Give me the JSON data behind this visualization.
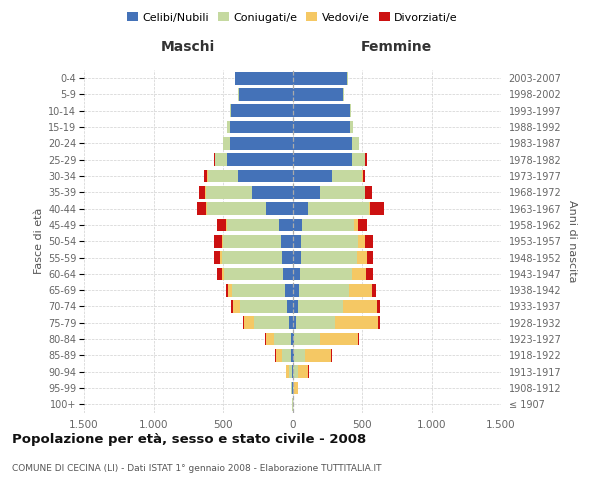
{
  "age_groups": [
    "100+",
    "95-99",
    "90-94",
    "85-89",
    "80-84",
    "75-79",
    "70-74",
    "65-69",
    "60-64",
    "55-59",
    "50-54",
    "45-49",
    "40-44",
    "35-39",
    "30-34",
    "25-29",
    "20-24",
    "15-19",
    "10-14",
    "5-9",
    "0-4"
  ],
  "birth_years": [
    "≤ 1907",
    "1908-1912",
    "1913-1917",
    "1918-1922",
    "1923-1927",
    "1928-1932",
    "1933-1937",
    "1938-1942",
    "1943-1947",
    "1948-1952",
    "1953-1957",
    "1958-1962",
    "1963-1967",
    "1968-1972",
    "1973-1977",
    "1978-1982",
    "1983-1987",
    "1988-1992",
    "1993-1997",
    "1998-2002",
    "2003-2007"
  ],
  "male_celibi": [
    0,
    2,
    4,
    8,
    10,
    25,
    40,
    55,
    65,
    75,
    80,
    95,
    190,
    290,
    390,
    470,
    450,
    450,
    445,
    385,
    415
  ],
  "male_coniugati": [
    2,
    7,
    22,
    65,
    125,
    255,
    340,
    380,
    425,
    430,
    420,
    375,
    425,
    335,
    220,
    88,
    48,
    18,
    8,
    4,
    2
  ],
  "male_vedovi": [
    0,
    4,
    18,
    48,
    58,
    68,
    50,
    28,
    18,
    13,
    9,
    7,
    4,
    3,
    2,
    0,
    0,
    0,
    0,
    0,
    0
  ],
  "male_divorziati": [
    0,
    0,
    0,
    4,
    8,
    8,
    13,
    18,
    38,
    48,
    58,
    68,
    68,
    48,
    28,
    8,
    4,
    2,
    0,
    0,
    0
  ],
  "fem_nubili": [
    0,
    2,
    4,
    12,
    12,
    22,
    38,
    48,
    52,
    58,
    62,
    68,
    115,
    195,
    285,
    425,
    425,
    415,
    415,
    365,
    395
  ],
  "fem_coniugate": [
    2,
    7,
    32,
    78,
    188,
    285,
    325,
    355,
    378,
    408,
    408,
    375,
    435,
    325,
    218,
    98,
    52,
    18,
    8,
    4,
    2
  ],
  "fem_vedove": [
    4,
    28,
    78,
    188,
    268,
    308,
    248,
    168,
    98,
    68,
    48,
    28,
    8,
    4,
    2,
    2,
    0,
    0,
    0,
    0,
    0
  ],
  "fem_divorziate": [
    0,
    0,
    2,
    4,
    8,
    13,
    18,
    28,
    48,
    48,
    58,
    62,
    98,
    48,
    18,
    8,
    4,
    2,
    0,
    0,
    0
  ],
  "colors": {
    "celibi": "#4472b8",
    "coniugati": "#c5d9a0",
    "vedovi": "#f5c864",
    "divorziati": "#cc1111"
  },
  "xlim": 1500,
  "title": "Popolazione per età, sesso e stato civile - 2008",
  "subtitle": "COMUNE DI CECINA (LI) - Dati ISTAT 1° gennaio 2008 - Elaborazione TUTTITALIA.IT",
  "ylabel_left": "Fasce di età",
  "ylabel_right": "Anni di nascita",
  "label_maschi": "Maschi",
  "label_femmine": "Femmine",
  "legend_labels": [
    "Celibi/Nubili",
    "Coniugati/e",
    "Vedovi/e",
    "Divorziati/e"
  ]
}
